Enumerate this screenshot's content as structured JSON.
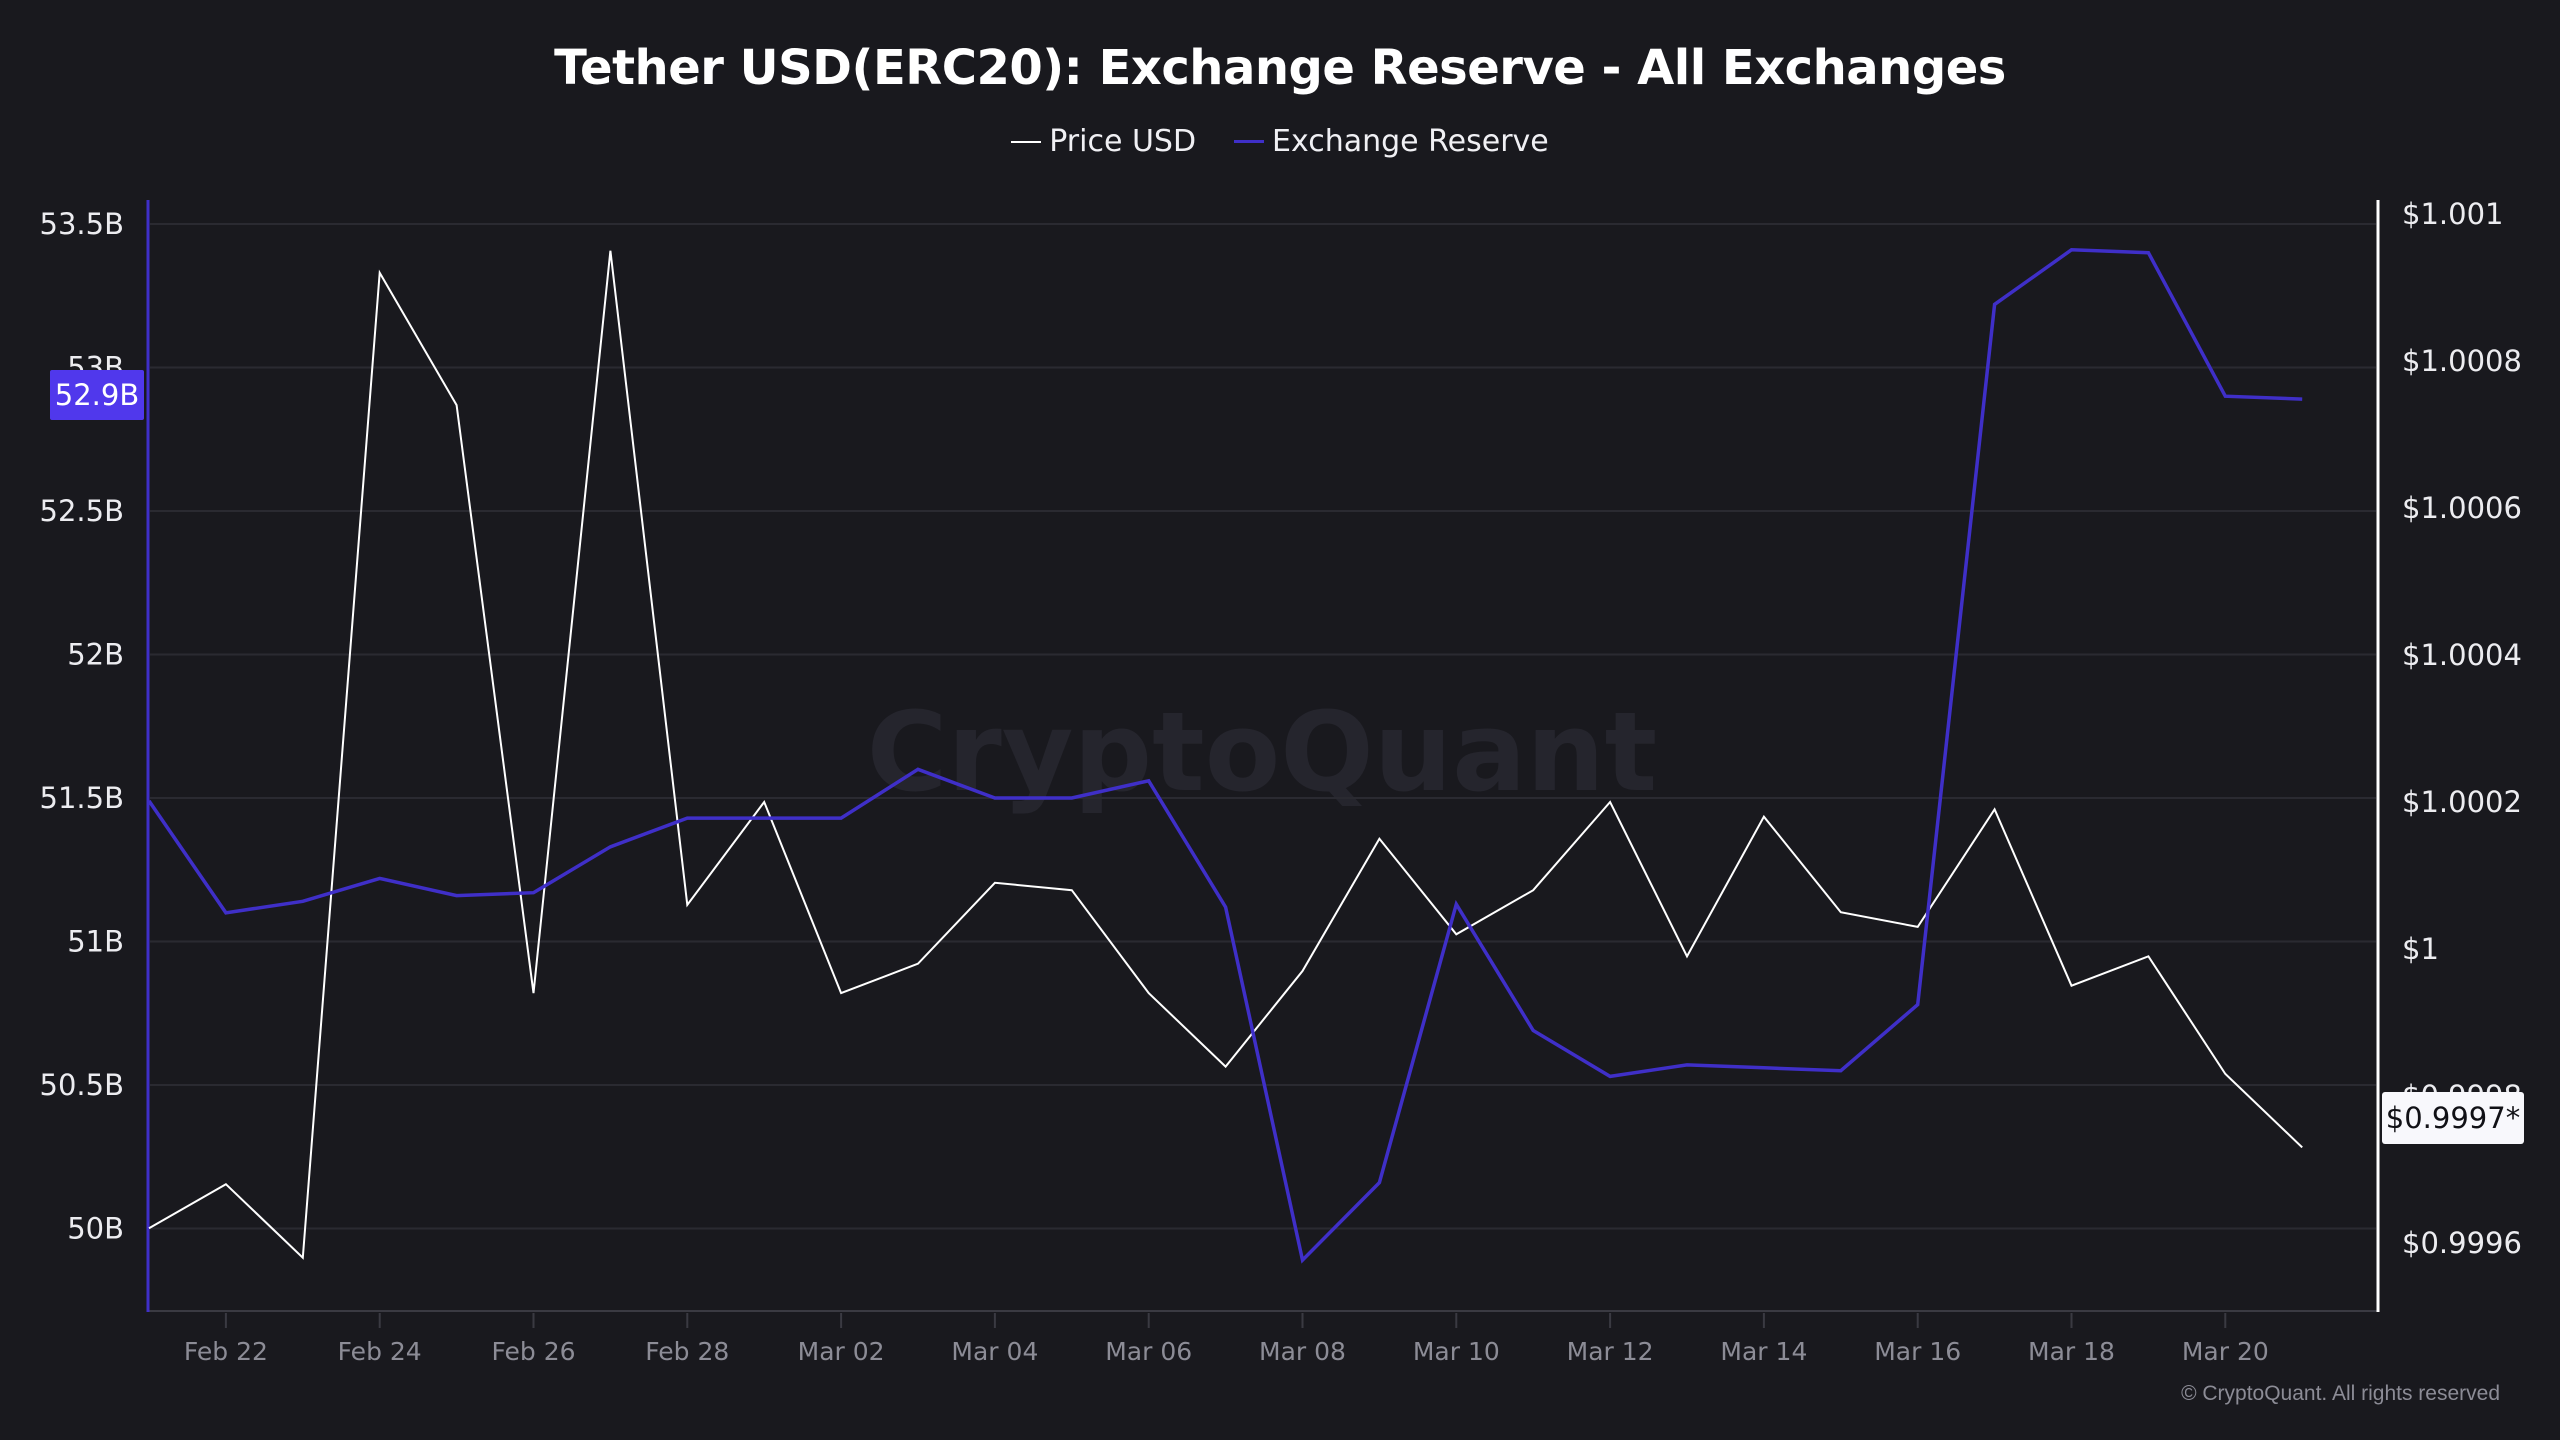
{
  "header": {
    "title": "Tether USD(ERC20): Exchange Reserve - All Exchanges"
  },
  "legend": {
    "items": [
      {
        "label": "Price USD",
        "color": "#ffffff"
      },
      {
        "label": "Exchange Reserve",
        "color": "#3f2fc8"
      }
    ]
  },
  "badges": {
    "reserve_current": "52.9B",
    "price_current": "$0.9997*"
  },
  "watermark": "CryptoQuant",
  "footer": {
    "copyright": "© CryptoQuant. All rights reserved"
  },
  "colors": {
    "background": "#19191e",
    "reserve_line": "#3f2fc8",
    "price_line": "#ffffff",
    "gridline": "#2a2a31",
    "badge_reserve": "#5038ec",
    "badge_price": "#f8f8fc"
  },
  "chart_data": {
    "type": "line",
    "title": "Tether USD(ERC20): Exchange Reserve - All Exchanges",
    "xlabel": "",
    "ylabel_left": "Exchange Reserve",
    "ylabel_right": "Price USD",
    "legend_position": "top",
    "grid": true,
    "x": [
      "Feb 21",
      "Feb 22",
      "Feb 23",
      "Feb 24",
      "Feb 25",
      "Feb 26",
      "Feb 27",
      "Feb 28",
      "Mar 01",
      "Mar 02",
      "Mar 03",
      "Mar 04",
      "Mar 05",
      "Mar 06",
      "Mar 07",
      "Mar 08",
      "Mar 09",
      "Mar 10",
      "Mar 11",
      "Mar 12",
      "Mar 13",
      "Mar 14",
      "Mar 15",
      "Mar 16",
      "Mar 17",
      "Mar 18",
      "Mar 19",
      "Mar 20",
      "Mar 21"
    ],
    "x_tick_labels": [
      "Feb 22",
      "Feb 24",
      "Feb 26",
      "Feb 28",
      "Mar 02",
      "Mar 04",
      "Mar 06",
      "Mar 08",
      "Mar 10",
      "Mar 12",
      "Mar 14",
      "Mar 16",
      "Mar 18",
      "Mar 20"
    ],
    "left_axis": {
      "ticks": [
        "53.5B",
        "53B",
        "52.5B",
        "52B",
        "51.5B",
        "51B",
        "50.5B",
        "50B"
      ],
      "tick_values": [
        53.5,
        53,
        52.5,
        52,
        51.5,
        51,
        50.5,
        50
      ],
      "unit": "B USD"
    },
    "right_axis": {
      "ticks": [
        "$1.001",
        "$1.0008",
        "$1.0006",
        "$1.0004",
        "$1.0002",
        "$1",
        "$0.9998",
        "$0.9996"
      ],
      "tick_values": [
        1.001,
        1.0008,
        1.0006,
        1.0004,
        1.0002,
        1.0,
        0.9998,
        0.9996
      ]
    },
    "series": [
      {
        "name": "Exchange Reserve",
        "axis": "left",
        "color": "#3f2fc8",
        "values": [
          51.49,
          51.1,
          51.14,
          51.22,
          51.16,
          51.17,
          51.33,
          51.43,
          51.43,
          51.43,
          51.6,
          51.5,
          51.5,
          51.56,
          51.12,
          49.89,
          50.16,
          51.13,
          50.69,
          50.53,
          50.57,
          50.56,
          50.55,
          50.78,
          53.22,
          53.41,
          53.4,
          52.9,
          52.89
        ]
      },
      {
        "name": "Price USD",
        "axis": "right",
        "color": "#ffffff",
        "values": [
          0.99962,
          0.99968,
          0.99958,
          1.00092,
          1.00074,
          0.99994,
          1.00095,
          1.00006,
          1.0002,
          0.99994,
          0.99998,
          1.00009,
          1.00008,
          0.99994,
          0.99984,
          0.99997,
          1.00015,
          1.00002,
          1.00008,
          1.0002,
          0.99999,
          1.00018,
          1.00005,
          1.00003,
          1.00019,
          0.99995,
          0.99999,
          0.99983,
          0.99973
        ]
      }
    ]
  }
}
